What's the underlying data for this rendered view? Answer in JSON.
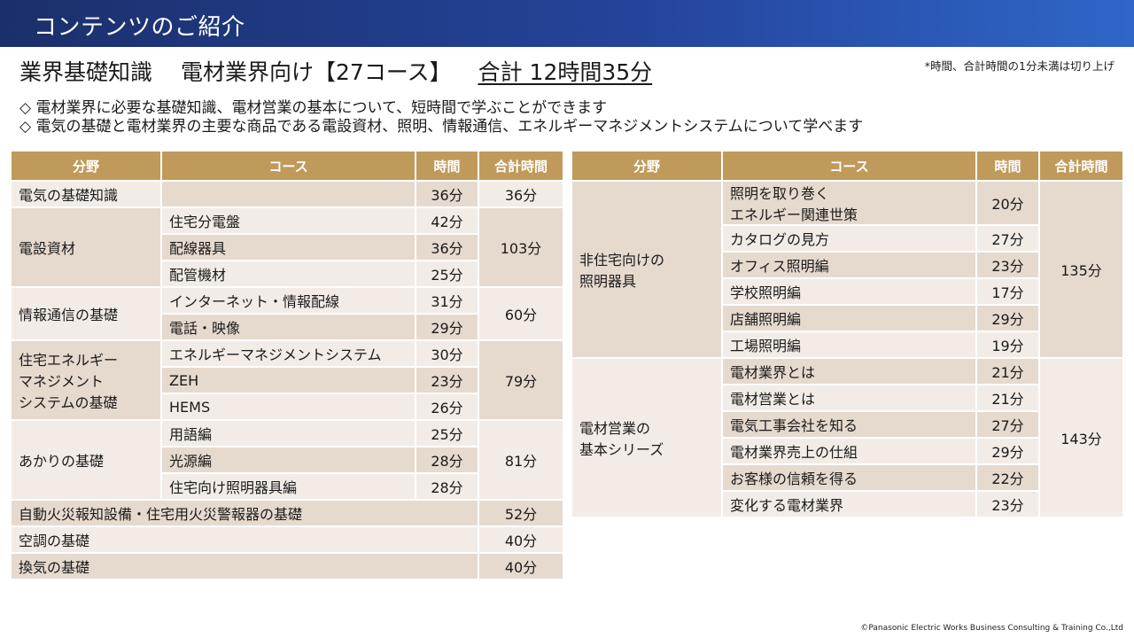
{
  "banner": {
    "title": "コンテンツのご紹介"
  },
  "headline": {
    "field": "業界基礎知識",
    "target": "電材業界向け【27コース】",
    "total": "合計 12時間35分"
  },
  "note": "*時間、合計時間の1分未満は切り上げ",
  "bullets": [
    "◇ 電材業界に必要な基礎知識、電材営業の基本について、短時間で学ぶことができます",
    "◇ 電気の基礎と電材業界の主要な商品である電設資材、照明、情報通信、エネルギーマネジメントシステムについて学べます"
  ],
  "headers": {
    "field": "分野",
    "course": "コース",
    "time": "時間",
    "total": "合計時間"
  },
  "left_table": [
    {
      "field": "電気の基礎知識",
      "courses": [
        {
          "name": "",
          "time": "36分"
        }
      ],
      "total": "36分"
    },
    {
      "field": "電設資材",
      "courses": [
        {
          "name": "住宅分電盤",
          "time": "42分"
        },
        {
          "name": "配線器具",
          "time": "36分"
        },
        {
          "name": "配管機材",
          "time": "25分"
        }
      ],
      "total": "103分"
    },
    {
      "field": "情報通信の基礎",
      "courses": [
        {
          "name": "インターネット・情報配線",
          "time": "31分"
        },
        {
          "name": "電話・映像",
          "time": "29分"
        }
      ],
      "total": "60分"
    },
    {
      "field": "住宅エネルギー\nマネジメント\nシステムの基礎",
      "courses": [
        {
          "name": "エネルギーマネジメントシステム",
          "time": "30分"
        },
        {
          "name": "ZEH",
          "time": "23分"
        },
        {
          "name": "HEMS",
          "time": "26分"
        }
      ],
      "total": "79分"
    },
    {
      "field": "あかりの基礎",
      "courses": [
        {
          "name": "用語編",
          "time": "25分"
        },
        {
          "name": "光源編",
          "time": "28分"
        },
        {
          "name": "住宅向け照明器具編",
          "time": "28分"
        }
      ],
      "total": "81分"
    }
  ],
  "left_wide_rows": [
    {
      "label": "自動火災報知設備・住宅用火災警報器の基礎",
      "total": "52分"
    },
    {
      "label": "空調の基礎",
      "total": "40分"
    },
    {
      "label": "換気の基礎",
      "total": "40分"
    }
  ],
  "right_table": [
    {
      "field": "非住宅向けの\n照明器具",
      "courses": [
        {
          "name": "照明を取り巻く\nエネルギー関連世策",
          "time": "20分"
        },
        {
          "name": "カタログの見方",
          "time": "27分"
        },
        {
          "name": "オフィス照明編",
          "time": "23分"
        },
        {
          "name": "学校照明編",
          "time": "17分"
        },
        {
          "name": "店舗照明編",
          "time": "29分"
        },
        {
          "name": "工場照明編",
          "time": "19分"
        }
      ],
      "total": "135分"
    },
    {
      "field": "電材営業の\n基本シリーズ",
      "courses": [
        {
          "name": "電材業界とは",
          "time": "21分"
        },
        {
          "name": "電材営業とは",
          "time": "21分"
        },
        {
          "name": "電気工事会社を知る",
          "time": "27分"
        },
        {
          "name": "電材業界売上の仕組",
          "time": "29分"
        },
        {
          "name": "お客様の信頼を得る",
          "time": "22分"
        },
        {
          "name": "変化する電材業界",
          "time": "23分"
        }
      ],
      "total": "143分"
    }
  ],
  "copyright": "©Panasonic Electric Works Business Consulting & Training Co.,Ltd"
}
